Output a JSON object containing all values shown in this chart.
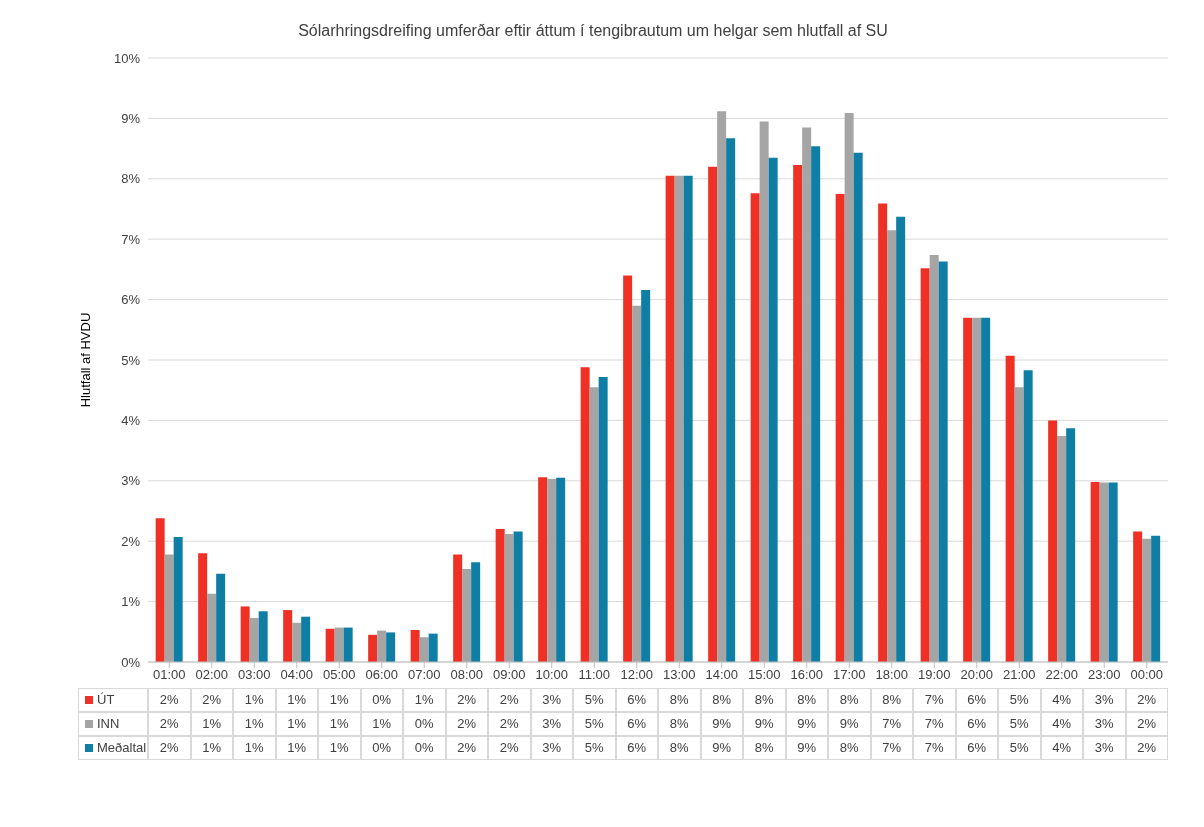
{
  "chart_data": {
    "type": "bar",
    "title": "Sólarhringsdreifing umferðar eftir áttum í tengibrautum um helgar sem hlutfall af SU",
    "ylabel": "Hlutfall af HVDU",
    "categories": [
      "01:00",
      "02:00",
      "03:00",
      "04:00",
      "05:00",
      "06:00",
      "07:00",
      "08:00",
      "09:00",
      "10:00",
      "11:00",
      "12:00",
      "13:00",
      "14:00",
      "15:00",
      "16:00",
      "17:00",
      "18:00",
      "19:00",
      "20:00",
      "21:00",
      "22:00",
      "23:00",
      "00:00"
    ],
    "series": [
      {
        "name": "ÚT",
        "color": "#ee3124",
        "values": [
          2.38,
          1.8,
          0.92,
          0.86,
          0.55,
          0.45,
          0.53,
          1.78,
          2.2,
          3.06,
          4.88,
          6.4,
          8.05,
          8.2,
          7.76,
          8.23,
          7.75,
          7.59,
          6.52,
          5.7,
          5.07,
          4.0,
          2.98,
          2.16
        ],
        "value_labels": [
          "2%",
          "2%",
          "1%",
          "1%",
          "1%",
          "0%",
          "1%",
          "2%",
          "2%",
          "3%",
          "5%",
          "6%",
          "8%",
          "8%",
          "8%",
          "8%",
          "8%",
          "8%",
          "7%",
          "6%",
          "5%",
          "4%",
          "3%",
          "2%"
        ]
      },
      {
        "name": "INN",
        "color": "#a5a5a5",
        "values": [
          1.78,
          1.13,
          0.73,
          0.65,
          0.57,
          0.52,
          0.41,
          1.54,
          2.12,
          3.03,
          4.55,
          5.9,
          8.05,
          9.12,
          8.95,
          8.85,
          9.09,
          7.15,
          6.74,
          5.7,
          4.55,
          3.74,
          2.97,
          2.04
        ],
        "value_labels": [
          "2%",
          "1%",
          "1%",
          "1%",
          "1%",
          "1%",
          "0%",
          "2%",
          "2%",
          "3%",
          "5%",
          "6%",
          "8%",
          "9%",
          "9%",
          "9%",
          "9%",
          "7%",
          "7%",
          "6%",
          "5%",
          "4%",
          "3%",
          "2%"
        ]
      },
      {
        "name": "Meðaltal",
        "color": "#0e7ea4",
        "values": [
          2.07,
          1.46,
          0.84,
          0.75,
          0.57,
          0.49,
          0.47,
          1.65,
          2.16,
          3.05,
          4.72,
          6.16,
          8.05,
          8.67,
          8.35,
          8.54,
          8.43,
          7.37,
          6.63,
          5.7,
          4.83,
          3.87,
          2.97,
          2.09
        ],
        "value_labels": [
          "2%",
          "1%",
          "1%",
          "1%",
          "1%",
          "0%",
          "0%",
          "2%",
          "2%",
          "3%",
          "5%",
          "6%",
          "8%",
          "9%",
          "8%",
          "9%",
          "8%",
          "7%",
          "7%",
          "6%",
          "5%",
          "4%",
          "3%",
          "2%"
        ]
      }
    ],
    "ylim": [
      0,
      10
    ],
    "yticks": [
      {
        "value": 0,
        "label": "0%"
      },
      {
        "value": 1,
        "label": "1%"
      },
      {
        "value": 2,
        "label": "2%"
      },
      {
        "value": 3,
        "label": "3%"
      },
      {
        "value": 4,
        "label": "4%"
      },
      {
        "value": 5,
        "label": "5%"
      },
      {
        "value": 6,
        "label": "6%"
      },
      {
        "value": 7,
        "label": "7%"
      },
      {
        "value": 8,
        "label": "8%"
      },
      {
        "value": 9,
        "label": "9%"
      },
      {
        "value": 10,
        "label": "10%"
      }
    ],
    "grid": "y",
    "legend": "bottom"
  }
}
